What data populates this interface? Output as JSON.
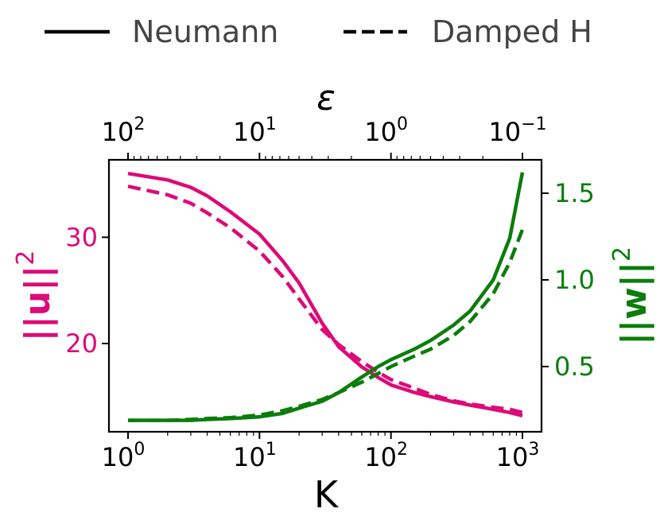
{
  "legend": {
    "placement": "top-center",
    "entries": [
      {
        "label": "Neumann",
        "style": "solid"
      },
      {
        "label": "Damped H",
        "style": "dashed"
      }
    ]
  },
  "axes": {
    "bottom_label": "K",
    "top_label": "ε",
    "left_label": "||u||",
    "left_label_exp": "2",
    "right_label": "||w||",
    "right_label_exp": "2",
    "bottom_ticks": [
      {
        "base": "10",
        "exp": "0"
      },
      {
        "base": "10",
        "exp": "1"
      },
      {
        "base": "10",
        "exp": "2"
      },
      {
        "base": "10",
        "exp": "3"
      }
    ],
    "top_ticks": [
      {
        "base": "10",
        "exp": "2"
      },
      {
        "base": "10",
        "exp": "1"
      },
      {
        "base": "10",
        "exp": "0"
      },
      {
        "base": "10",
        "exp": "−1"
      }
    ],
    "left_ticks": [
      "20",
      "30"
    ],
    "right_ticks": [
      "0.5",
      "1.0",
      "1.5"
    ]
  },
  "colors": {
    "u": "#dd0a78",
    "w": "#0b7d0b",
    "legend_text": "#444444",
    "axis": "#000000"
  },
  "chart_data": {
    "type": "line",
    "x_scale": "log",
    "x_label": "K",
    "xlim": [
      1,
      1000
    ],
    "top_axis": {
      "label": "ε",
      "scale": "log",
      "range": [
        100,
        0.1
      ],
      "note": "ε = 100 / K"
    },
    "y_left": {
      "label": "||u||^2",
      "ylim": [
        12.3,
        37.3
      ],
      "ticks": [
        20,
        30
      ]
    },
    "y_right": {
      "label": "||w||^2",
      "ylim": [
        0.13,
        1.65
      ],
      "ticks": [
        0.5,
        1.0,
        1.5
      ]
    },
    "x": [
      1,
      2,
      3,
      4,
      6,
      10,
      15,
      20,
      30,
      40,
      60,
      80,
      100,
      150,
      200,
      300,
      400,
      600,
      800,
      1000
    ],
    "series": [
      {
        "name": "Neumann",
        "variable": "||u||^2",
        "axis": "left",
        "style": "solid",
        "values": [
          36.0,
          35.4,
          34.7,
          33.9,
          32.4,
          30.3,
          27.8,
          25.7,
          21.9,
          19.7,
          17.8,
          16.8,
          16.1,
          15.4,
          15.0,
          14.5,
          14.2,
          13.8,
          13.5,
          13.2
        ]
      },
      {
        "name": "Damped H",
        "variable": "||u||^2",
        "axis": "left",
        "style": "dashed",
        "values": [
          34.8,
          34.0,
          33.2,
          32.3,
          30.9,
          28.7,
          26.3,
          24.2,
          21.3,
          19.9,
          18.3,
          17.3,
          16.6,
          15.8,
          15.2,
          14.6,
          14.3,
          14.0,
          13.8,
          13.5
        ]
      },
      {
        "name": "Neumann",
        "variable": "||w||^2",
        "axis": "right",
        "style": "solid",
        "values": [
          0.19,
          0.19,
          0.19,
          0.195,
          0.2,
          0.21,
          0.23,
          0.26,
          0.3,
          0.35,
          0.44,
          0.5,
          0.54,
          0.6,
          0.65,
          0.74,
          0.82,
          1.0,
          1.24,
          1.62
        ]
      },
      {
        "name": "Damped H",
        "variable": "||w||^2",
        "axis": "right",
        "style": "dashed",
        "values": [
          0.19,
          0.19,
          0.195,
          0.2,
          0.205,
          0.22,
          0.245,
          0.27,
          0.31,
          0.35,
          0.41,
          0.46,
          0.5,
          0.56,
          0.6,
          0.68,
          0.76,
          0.92,
          1.1,
          1.29
        ]
      }
    ]
  }
}
